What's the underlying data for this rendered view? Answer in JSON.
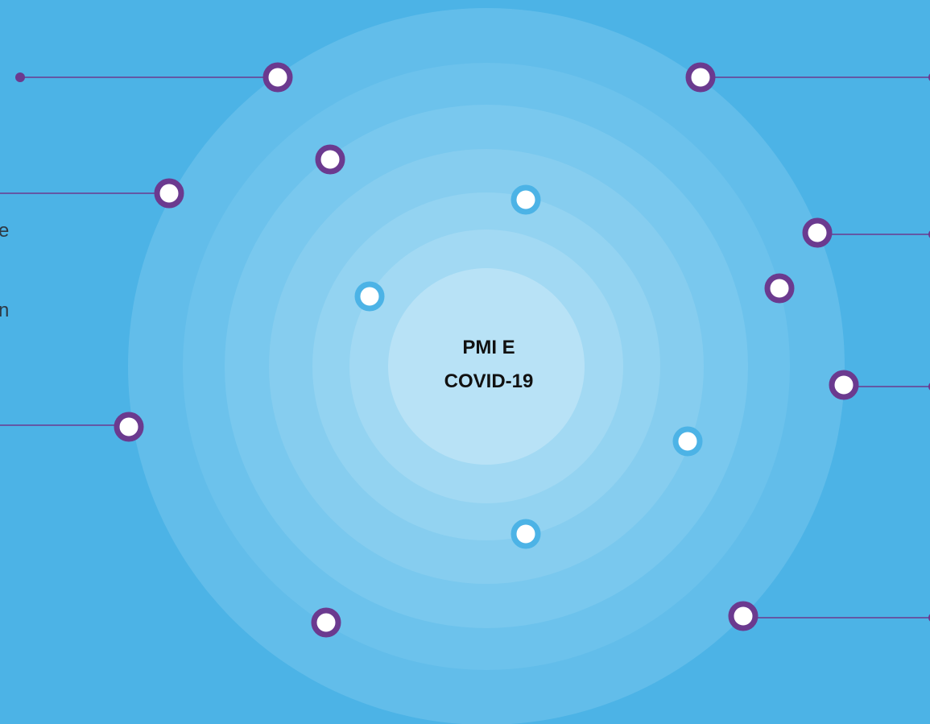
{
  "center": {
    "lines": [
      "PMI E",
      "COVID-19"
    ]
  },
  "fragments": [
    "e",
    "n"
  ]
}
